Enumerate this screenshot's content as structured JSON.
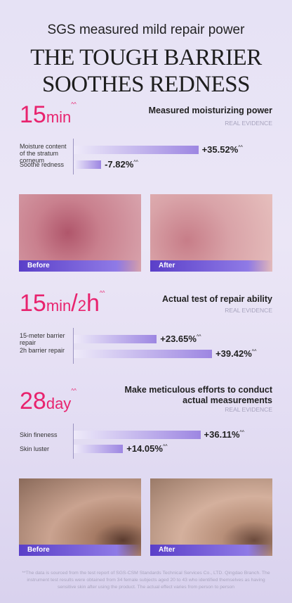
{
  "header": {
    "subtitle": "SGS measured mild repair power",
    "title_lines": [
      "THE TOUGH BARRIER",
      "SOOTHES REDNESS"
    ]
  },
  "sections": [
    {
      "big": [
        "15",
        "min"
      ],
      "mark": "^^",
      "heading": [
        "Measured moisturizing power"
      ],
      "evidence": "REAL EVIDENCE",
      "bars": [
        {
          "label": "Moisture content of the stratum corneum",
          "value": 35.52,
          "value_label": "+35.52%"
        },
        {
          "label": "Soothe redness",
          "value": -7.82,
          "value_label": "-7.82%"
        }
      ]
    },
    {
      "big": [
        "15",
        "min",
        "/",
        "2",
        "h"
      ],
      "mark": "^^",
      "heading": [
        "Actual test of repair ability"
      ],
      "evidence": "REAL EVIDENCE",
      "bars": [
        {
          "label": "15-meter barrier repair",
          "value": 23.65,
          "value_label": "+23.65%"
        },
        {
          "label": "2h barrier repair",
          "value": 39.42,
          "value_label": "+39.42%"
        }
      ]
    },
    {
      "big": [
        "28",
        "day"
      ],
      "mark": "^^",
      "heading": [
        "Make meticulous efforts to conduct",
        "actual measurements"
      ],
      "evidence": "REAL EVIDENCE",
      "bars": [
        {
          "label": "Skin fineness",
          "value": 36.11,
          "value_label": "+36.11%"
        },
        {
          "label": "Skin luster",
          "value": 14.05,
          "value_label": "+14.05%"
        }
      ]
    }
  ],
  "photos": [
    {
      "before": "Before",
      "after": "After"
    },
    {
      "before": "Before",
      "after": "After"
    }
  ],
  "footnote": "**The data is sourced from the test report of SGS-CSM Standards Technical Services Co., LTD. Qingdao Branch. The instrument test results were obtained from 34 female subjects aged 20 to 43 who identified themselves as having sensitive skin after using the product. The actual effect varies from person to person"
}
